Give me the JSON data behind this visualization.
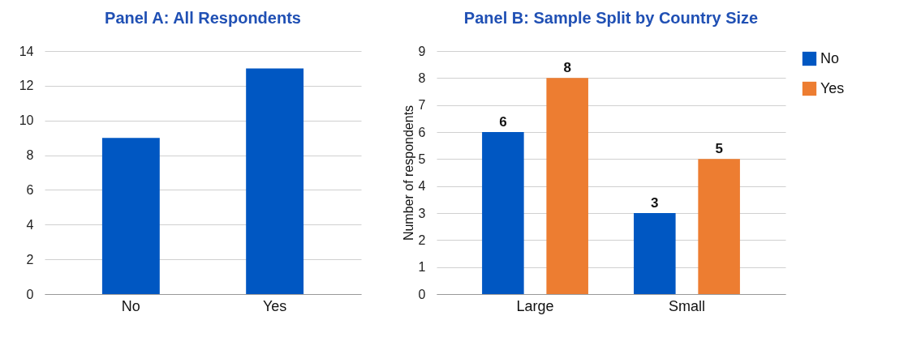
{
  "chart_data": [
    {
      "type": "bar",
      "title": "Panel A: All Respondents",
      "categories": [
        "No",
        "Yes"
      ],
      "values": [
        9,
        13
      ],
      "color": "#0057c2",
      "ylim": [
        0,
        14
      ],
      "yticks": [
        0,
        2,
        4,
        6,
        8,
        10,
        12,
        14
      ],
      "grid": "y"
    },
    {
      "type": "bar",
      "title": "Panel B: Sample Split by Country Size",
      "ylabel": "Number of respondents",
      "categories": [
        "Large",
        "Small"
      ],
      "series": [
        {
          "name": "No",
          "color": "#0057c2",
          "values": [
            6,
            3
          ]
        },
        {
          "name": "Yes",
          "color": "#ed7d31",
          "values": [
            8,
            5
          ]
        }
      ],
      "ylim": [
        0,
        9
      ],
      "yticks": [
        0,
        1,
        2,
        3,
        4,
        5,
        6,
        7,
        8,
        9
      ],
      "grid": "y",
      "legend": "top right",
      "data_labels": true
    }
  ]
}
